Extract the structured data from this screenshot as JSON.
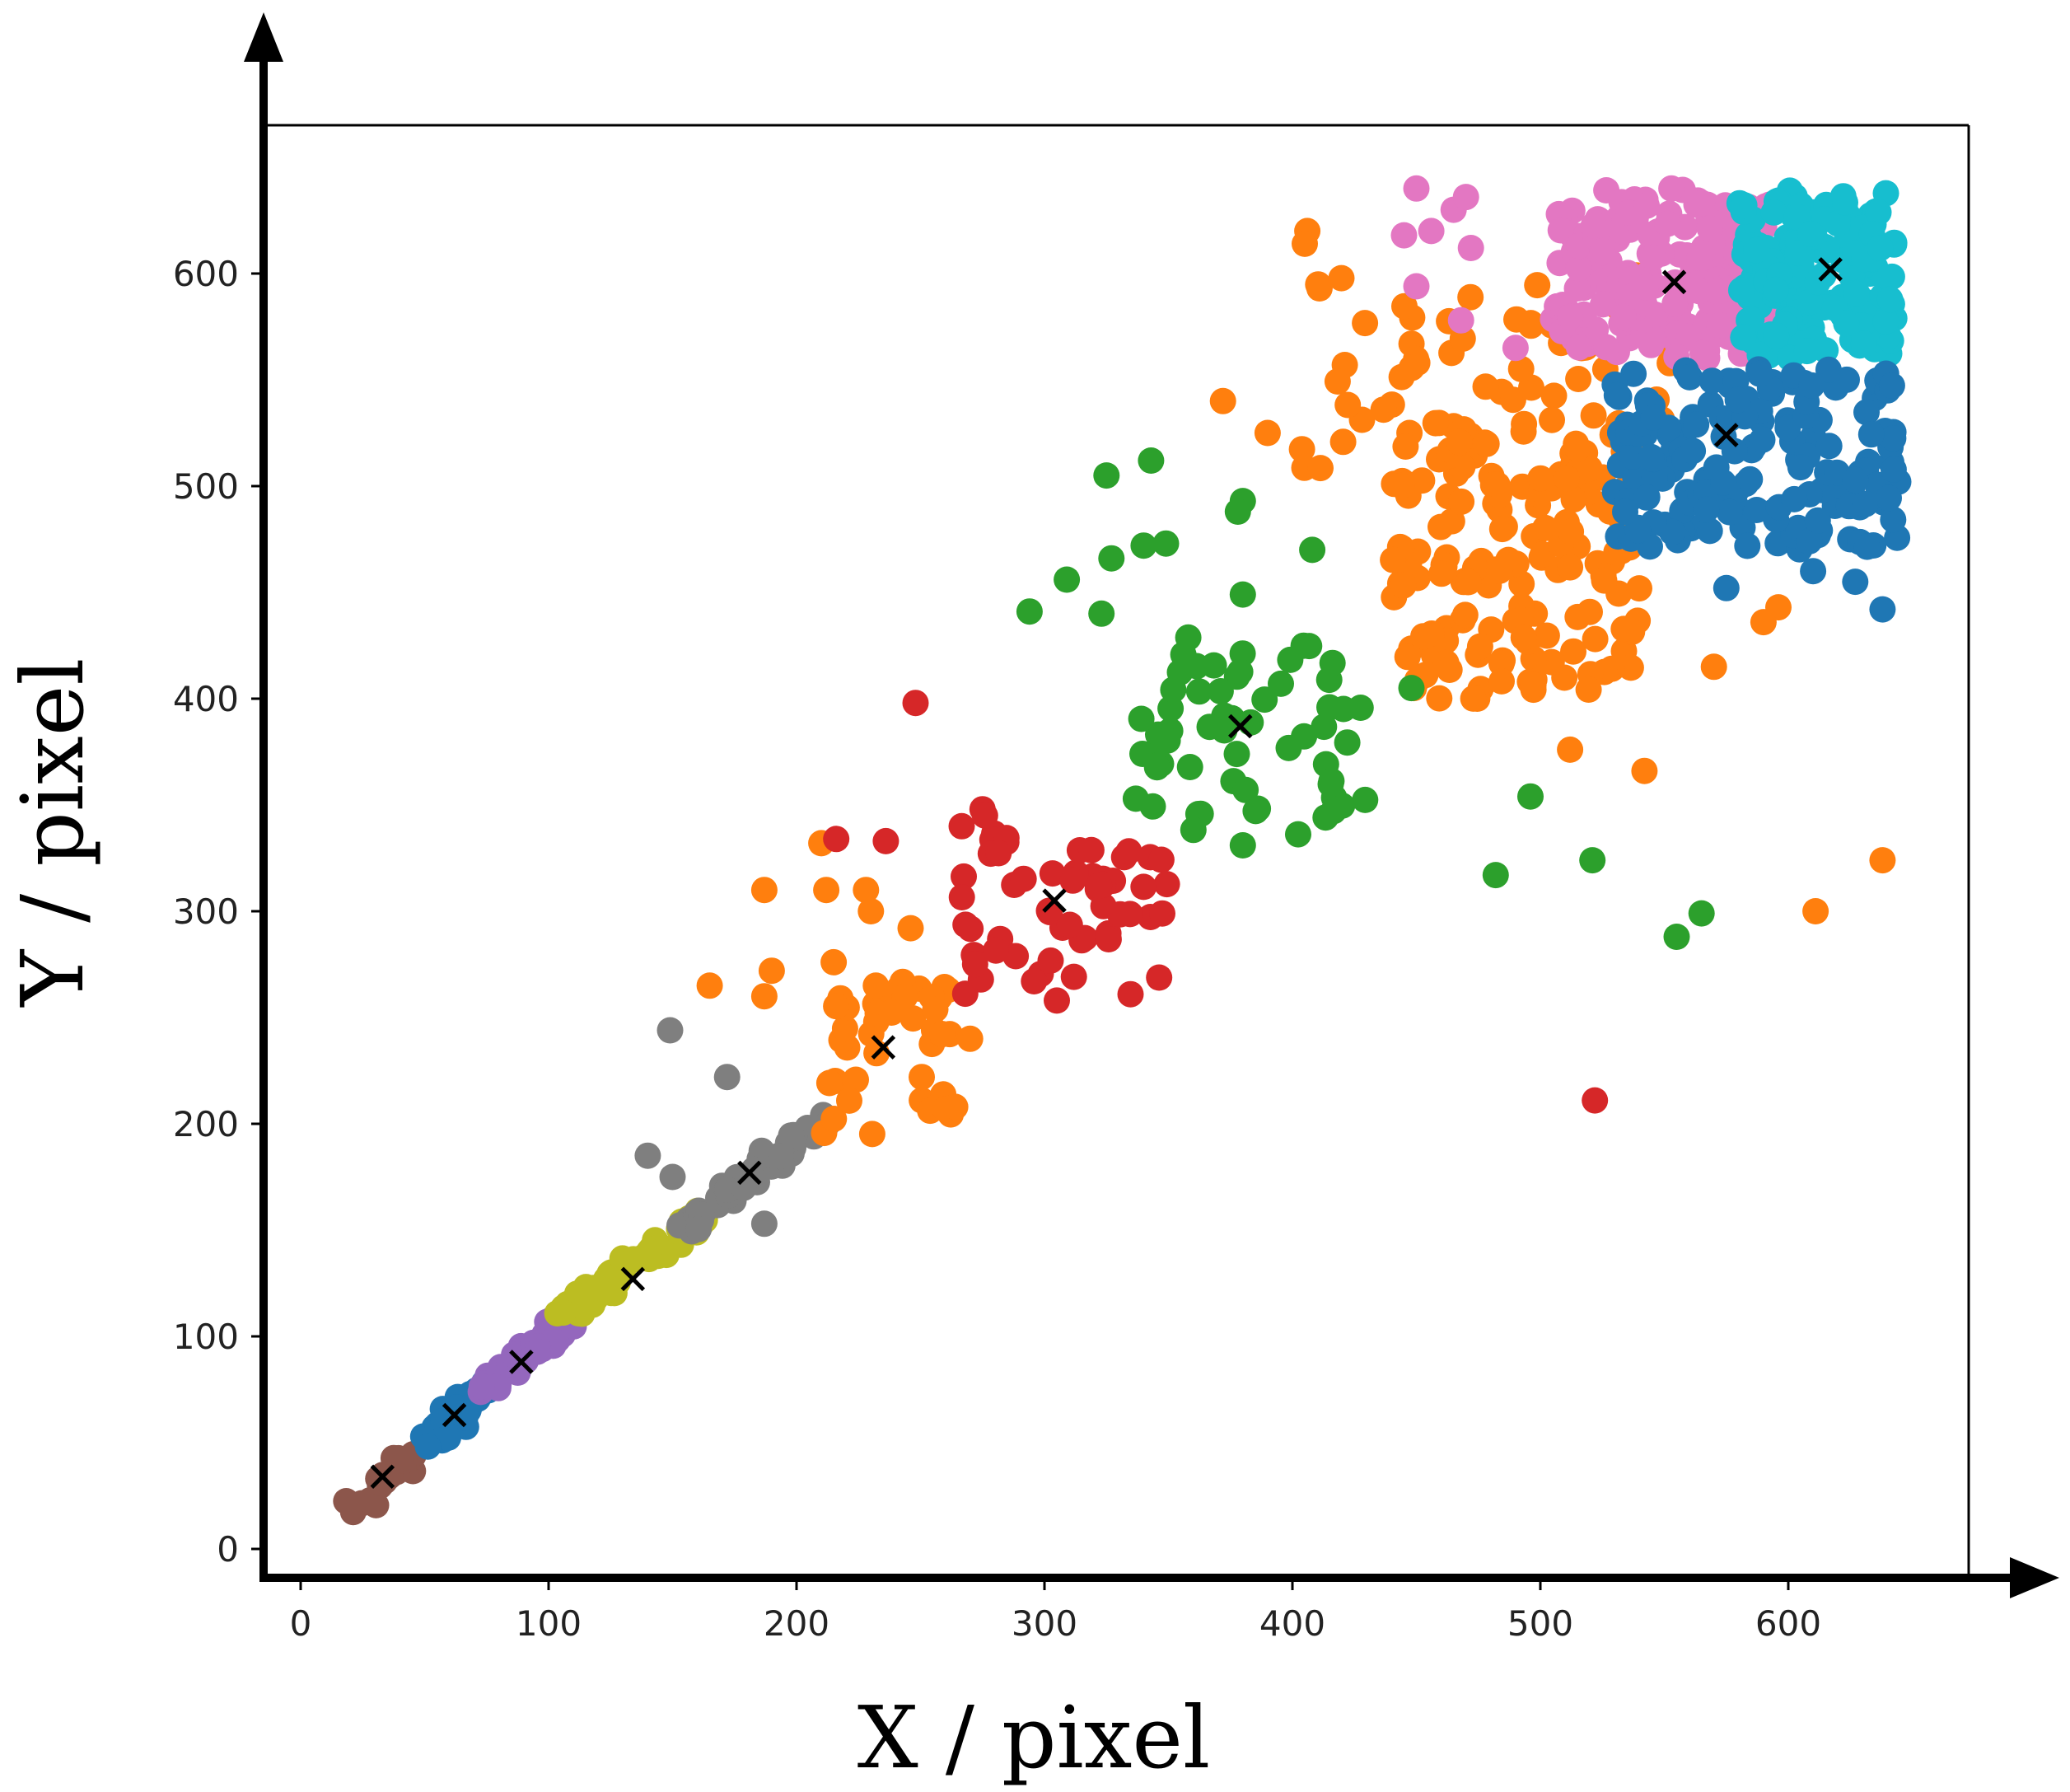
{
  "chart_data": {
    "type": "scatter",
    "xlabel": "X / pixel",
    "ylabel": "Y / pixel",
    "xlim": [
      -15,
      670
    ],
    "ylim": [
      -8,
      672
    ],
    "xticks": [
      0,
      100,
      200,
      300,
      400,
      500,
      600
    ],
    "yticks": [
      0,
      100,
      200,
      300,
      400,
      500,
      600
    ],
    "grid": false,
    "legend": "none",
    "marker": "circle",
    "centroid_marker": "x",
    "centroid_color": "#000000",
    "series": [
      {
        "color": "#8c564b",
        "centroid": [
          33,
          34
        ],
        "clusters": [
          [
            [
              22,
              20
            ],
            [
              44,
              44
            ],
            26
          ]
        ],
        "points": []
      },
      {
        "color": "#1f77b4",
        "centroid": [
          62,
          63
        ],
        "clusters": [
          [
            [
              52,
              50
            ],
            [
              74,
              76
            ],
            36
          ]
        ],
        "points": []
      },
      {
        "color": "#9467bd",
        "centroid": [
          89,
          88
        ],
        "clusters": [
          [
            [
              76,
              78
            ],
            [
              108,
              106
            ],
            40
          ]
        ],
        "points": []
      },
      {
        "color": "#bcbd22",
        "centroid": [
          134,
          127
        ],
        "clusters": [
          [
            [
              108,
              110
            ],
            [
              162,
              158
            ],
            70
          ]
        ],
        "points": []
      },
      {
        "color": "#7f7f7f",
        "centroid": [
          181,
          177
        ],
        "clusters": [
          [
            [
              155,
              150
            ],
            [
              212,
              205
            ],
            50
          ]
        ],
        "points": [
          [
            149,
            244
          ],
          [
            172,
            222
          ],
          [
            140,
            185
          ],
          [
            187,
            153
          ],
          [
            150,
            175
          ]
        ]
      },
      {
        "color": "#ff7f0e",
        "centroid": [
          235,
          236
        ],
        "clusters": [
          [
            [
              210,
              195
            ],
            [
              265,
              270
            ],
            40
          ],
          [
            [
              440,
              400
            ],
            [
              540,
              530
            ],
            150
          ],
          [
            [
              400,
              500
            ],
            [
              560,
              600
            ],
            70
          ]
        ],
        "points": [
          [
            165,
            265
          ],
          [
            187,
            260
          ],
          [
            190,
            272
          ],
          [
            187,
            310
          ],
          [
            210,
            332
          ],
          [
            212,
            310
          ],
          [
            215,
            276
          ],
          [
            228,
            310
          ],
          [
            230,
            300
          ],
          [
            232,
            265
          ],
          [
            246,
            292
          ],
          [
            264,
            208
          ],
          [
            270,
            240
          ],
          [
            406,
            620
          ],
          [
            405,
            614
          ],
          [
            372,
            540
          ],
          [
            390,
            525
          ],
          [
            512,
            376
          ],
          [
            542,
            366
          ],
          [
            611,
            300
          ],
          [
            638,
            324
          ],
          [
            596,
            443
          ],
          [
            590,
            436
          ],
          [
            570,
            415
          ],
          [
            449,
            405
          ]
        ]
      },
      {
        "color": "#d62728",
        "centroid": [
          304,
          305
        ],
        "clusters": [
          [
            [
              265,
              260
            ],
            [
              350,
              340
            ],
            55
          ]
        ],
        "points": [
          [
            248,
            398
          ],
          [
            216,
            334
          ],
          [
            236,
            333
          ],
          [
            275,
            348
          ],
          [
            276,
            345
          ],
          [
            322,
            312
          ],
          [
            305,
            258
          ],
          [
            522,
            211
          ]
        ]
      },
      {
        "color": "#2ca02c",
        "centroid": [
          379,
          387
        ],
        "clusters": [
          [
            [
              336,
              335
            ],
            [
              430,
              430
            ],
            60
          ]
        ],
        "points": [
          [
            294,
            441
          ],
          [
            309,
            456
          ],
          [
            323,
            440
          ],
          [
            327,
            466
          ],
          [
            325,
            505
          ],
          [
            343,
            512
          ],
          [
            340,
            472
          ],
          [
            349,
            473
          ],
          [
            380,
            493
          ],
          [
            378,
            488
          ],
          [
            380,
            449
          ],
          [
            380,
            331
          ],
          [
            408,
            470
          ],
          [
            448,
            405
          ],
          [
            482,
            317
          ],
          [
            496,
            354
          ],
          [
            521,
            324
          ],
          [
            555,
            288
          ],
          [
            565,
            299
          ]
        ]
      },
      {
        "color": "#e377c2",
        "centroid": [
          554,
          596
        ],
        "clusters": [
          [
            [
              505,
              560
            ],
            [
              595,
              640
            ],
            190
          ]
        ],
        "points": [
          [
            450,
            640
          ],
          [
            445,
            618
          ],
          [
            456,
            620
          ],
          [
            465,
            630
          ],
          [
            470,
            636
          ],
          [
            450,
            594
          ],
          [
            472,
            612
          ],
          [
            468,
            578
          ],
          [
            490,
            565
          ]
        ]
      },
      {
        "color": "#17becf",
        "centroid": [
          617,
          602
        ],
        "clusters": [
          [
            [
              580,
              560
            ],
            [
              643,
              640
            ],
            170
          ]
        ],
        "points": []
      },
      {
        "color": "#1f77b4",
        "centroid": [
          575,
          524
        ],
        "clusters": [
          [
            [
              530,
              470
            ],
            [
              645,
              555
            ],
            170
          ]
        ],
        "points": [
          [
            638,
            442
          ],
          [
            627,
            455
          ],
          [
            610,
            460
          ],
          [
            575,
            452
          ]
        ]
      }
    ]
  }
}
